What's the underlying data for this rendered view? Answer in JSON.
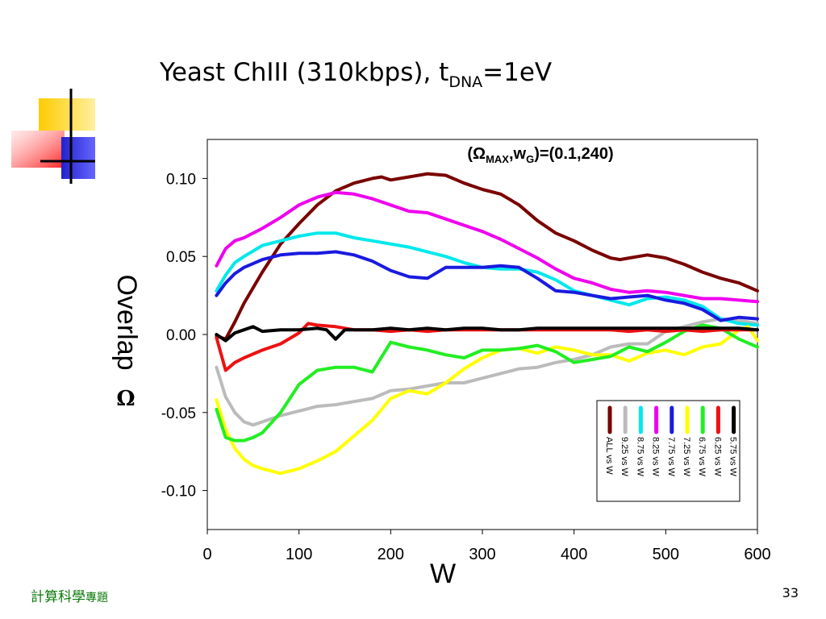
{
  "slide": {
    "title_main": "Yeast ChIII (310kbps), t",
    "title_sub": "DNA",
    "title_tail": "=1eV",
    "footer_main": "計算科學",
    "footer_small": "專題",
    "page_number": "33"
  },
  "chart_data": {
    "type": "line",
    "annotation": {
      "open": "(",
      "symbol": "Ω",
      "sub1": "MAX",
      "comma": ",w",
      "sub2": "G",
      "close": ")=(0.1,240)"
    },
    "xlabel": "W",
    "ylabel": "Overlap",
    "ylabel_symbol": "Ω",
    "xlim": [
      0,
      600
    ],
    "ylim": [
      -0.125,
      0.125
    ],
    "xticks": [
      0,
      100,
      200,
      300,
      400,
      500,
      600
    ],
    "xtick_labels": [
      "0",
      "100",
      "200",
      "300",
      "400",
      "500",
      "600"
    ],
    "yticks": [
      0.1,
      0.05,
      0.0,
      -0.05,
      -0.1
    ],
    "ytick_labels": [
      "0.10",
      "0.05",
      "0.00",
      "-0.05",
      "-0.10"
    ],
    "grid": false,
    "legend_position": "bottom-right",
    "series": [
      {
        "name": "ALL vs W",
        "color": "#7a0000",
        "points": [
          [
            10,
            -0.001
          ],
          [
            20,
            -0.003
          ],
          [
            30,
            0.008
          ],
          [
            40,
            0.02
          ],
          [
            60,
            0.04
          ],
          [
            80,
            0.058
          ],
          [
            100,
            0.071
          ],
          [
            120,
            0.083
          ],
          [
            140,
            0.092
          ],
          [
            160,
            0.097
          ],
          [
            180,
            0.1
          ],
          [
            190,
            0.101
          ],
          [
            200,
            0.099
          ],
          [
            220,
            0.101
          ],
          [
            240,
            0.103
          ],
          [
            260,
            0.102
          ],
          [
            280,
            0.097
          ],
          [
            300,
            0.093
          ],
          [
            320,
            0.09
          ],
          [
            340,
            0.083
          ],
          [
            360,
            0.073
          ],
          [
            380,
            0.065
          ],
          [
            400,
            0.06
          ],
          [
            420,
            0.054
          ],
          [
            440,
            0.049
          ],
          [
            450,
            0.048
          ],
          [
            460,
            0.049
          ],
          [
            480,
            0.051
          ],
          [
            500,
            0.049
          ],
          [
            520,
            0.045
          ],
          [
            540,
            0.04
          ],
          [
            560,
            0.036
          ],
          [
            580,
            0.033
          ],
          [
            600,
            0.028
          ]
        ]
      },
      {
        "name": "9.25 vs W",
        "color": "#bbbbbb",
        "points": [
          [
            10,
            -0.021
          ],
          [
            20,
            -0.04
          ],
          [
            30,
            -0.05
          ],
          [
            40,
            -0.056
          ],
          [
            50,
            -0.058
          ],
          [
            60,
            -0.056
          ],
          [
            80,
            -0.052
          ],
          [
            100,
            -0.049
          ],
          [
            120,
            -0.046
          ],
          [
            140,
            -0.045
          ],
          [
            160,
            -0.043
          ],
          [
            180,
            -0.041
          ],
          [
            200,
            -0.036
          ],
          [
            220,
            -0.035
          ],
          [
            240,
            -0.033
          ],
          [
            260,
            -0.031
          ],
          [
            280,
            -0.031
          ],
          [
            300,
            -0.028
          ],
          [
            320,
            -0.025
          ],
          [
            340,
            -0.022
          ],
          [
            360,
            -0.021
          ],
          [
            380,
            -0.018
          ],
          [
            400,
            -0.016
          ],
          [
            420,
            -0.013
          ],
          [
            440,
            -0.008
          ],
          [
            460,
            -0.006
          ],
          [
            480,
            -0.006
          ],
          [
            500,
            0.002
          ],
          [
            520,
            0.005
          ],
          [
            540,
            0.008
          ],
          [
            560,
            0.01
          ],
          [
            580,
            0.009
          ],
          [
            600,
            0.007
          ]
        ]
      },
      {
        "name": "8.75 vs W",
        "color": "#00e8ec",
        "points": [
          [
            10,
            0.028
          ],
          [
            20,
            0.038
          ],
          [
            30,
            0.046
          ],
          [
            40,
            0.05
          ],
          [
            60,
            0.057
          ],
          [
            80,
            0.06
          ],
          [
            100,
            0.063
          ],
          [
            120,
            0.065
          ],
          [
            140,
            0.065
          ],
          [
            160,
            0.062
          ],
          [
            180,
            0.06
          ],
          [
            200,
            0.058
          ],
          [
            220,
            0.056
          ],
          [
            240,
            0.053
          ],
          [
            260,
            0.05
          ],
          [
            280,
            0.046
          ],
          [
            300,
            0.043
          ],
          [
            320,
            0.042
          ],
          [
            340,
            0.042
          ],
          [
            360,
            0.04
          ],
          [
            380,
            0.035
          ],
          [
            400,
            0.028
          ],
          [
            420,
            0.025
          ],
          [
            440,
            0.022
          ],
          [
            460,
            0.019
          ],
          [
            480,
            0.023
          ],
          [
            500,
            0.024
          ],
          [
            520,
            0.022
          ],
          [
            540,
            0.018
          ],
          [
            560,
            0.01
          ],
          [
            580,
            0.007
          ],
          [
            600,
            0.006
          ]
        ]
      },
      {
        "name": "8.25 vs W",
        "color": "#ee00ee",
        "points": [
          [
            10,
            0.044
          ],
          [
            20,
            0.055
          ],
          [
            30,
            0.06
          ],
          [
            40,
            0.062
          ],
          [
            60,
            0.068
          ],
          [
            80,
            0.075
          ],
          [
            100,
            0.083
          ],
          [
            120,
            0.088
          ],
          [
            140,
            0.091
          ],
          [
            160,
            0.09
          ],
          [
            180,
            0.087
          ],
          [
            200,
            0.083
          ],
          [
            220,
            0.079
          ],
          [
            240,
            0.078
          ],
          [
            260,
            0.074
          ],
          [
            280,
            0.07
          ],
          [
            300,
            0.066
          ],
          [
            320,
            0.061
          ],
          [
            340,
            0.055
          ],
          [
            360,
            0.049
          ],
          [
            380,
            0.042
          ],
          [
            400,
            0.036
          ],
          [
            420,
            0.033
          ],
          [
            440,
            0.029
          ],
          [
            460,
            0.027
          ],
          [
            480,
            0.028
          ],
          [
            500,
            0.027
          ],
          [
            520,
            0.025
          ],
          [
            540,
            0.023
          ],
          [
            560,
            0.023
          ],
          [
            580,
            0.022
          ],
          [
            600,
            0.021
          ]
        ]
      },
      {
        "name": "7.75 vs W",
        "color": "#1a1adf",
        "points": [
          [
            10,
            0.025
          ],
          [
            20,
            0.033
          ],
          [
            30,
            0.039
          ],
          [
            40,
            0.043
          ],
          [
            60,
            0.048
          ],
          [
            80,
            0.051
          ],
          [
            100,
            0.052
          ],
          [
            120,
            0.052
          ],
          [
            140,
            0.053
          ],
          [
            160,
            0.051
          ],
          [
            180,
            0.047
          ],
          [
            200,
            0.041
          ],
          [
            220,
            0.037
          ],
          [
            240,
            0.036
          ],
          [
            260,
            0.043
          ],
          [
            280,
            0.043
          ],
          [
            300,
            0.043
          ],
          [
            320,
            0.044
          ],
          [
            340,
            0.043
          ],
          [
            360,
            0.036
          ],
          [
            380,
            0.028
          ],
          [
            400,
            0.027
          ],
          [
            420,
            0.025
          ],
          [
            440,
            0.023
          ],
          [
            460,
            0.024
          ],
          [
            480,
            0.025
          ],
          [
            500,
            0.022
          ],
          [
            520,
            0.02
          ],
          [
            540,
            0.016
          ],
          [
            560,
            0.009
          ],
          [
            580,
            0.011
          ],
          [
            600,
            0.01
          ]
        ]
      },
      {
        "name": "7.25 vs W",
        "color": "#ffff00",
        "points": [
          [
            10,
            -0.042
          ],
          [
            20,
            -0.061
          ],
          [
            30,
            -0.073
          ],
          [
            40,
            -0.08
          ],
          [
            50,
            -0.084
          ],
          [
            60,
            -0.086
          ],
          [
            80,
            -0.089
          ],
          [
            100,
            -0.086
          ],
          [
            120,
            -0.081
          ],
          [
            140,
            -0.075
          ],
          [
            160,
            -0.065
          ],
          [
            180,
            -0.055
          ],
          [
            200,
            -0.041
          ],
          [
            220,
            -0.036
          ],
          [
            240,
            -0.038
          ],
          [
            260,
            -0.031
          ],
          [
            280,
            -0.022
          ],
          [
            300,
            -0.015
          ],
          [
            320,
            -0.01
          ],
          [
            340,
            -0.009
          ],
          [
            360,
            -0.012
          ],
          [
            380,
            -0.008
          ],
          [
            400,
            -0.01
          ],
          [
            420,
            -0.013
          ],
          [
            440,
            -0.013
          ],
          [
            460,
            -0.017
          ],
          [
            480,
            -0.012
          ],
          [
            500,
            -0.01
          ],
          [
            520,
            -0.013
          ],
          [
            540,
            -0.008
          ],
          [
            560,
            -0.006
          ],
          [
            580,
            0.003
          ],
          [
            590,
            0.005
          ],
          [
            600,
            -0.004
          ]
        ]
      },
      {
        "name": "6.75 vs W",
        "color": "#22ee22",
        "points": [
          [
            10,
            -0.048
          ],
          [
            20,
            -0.066
          ],
          [
            30,
            -0.068
          ],
          [
            40,
            -0.068
          ],
          [
            50,
            -0.066
          ],
          [
            60,
            -0.063
          ],
          [
            80,
            -0.05
          ],
          [
            100,
            -0.032
          ],
          [
            120,
            -0.023
          ],
          [
            140,
            -0.021
          ],
          [
            160,
            -0.021
          ],
          [
            180,
            -0.024
          ],
          [
            200,
            -0.005
          ],
          [
            220,
            -0.008
          ],
          [
            240,
            -0.01
          ],
          [
            260,
            -0.013
          ],
          [
            280,
            -0.015
          ],
          [
            300,
            -0.01
          ],
          [
            320,
            -0.01
          ],
          [
            340,
            -0.009
          ],
          [
            360,
            -0.007
          ],
          [
            380,
            -0.011
          ],
          [
            400,
            -0.018
          ],
          [
            420,
            -0.016
          ],
          [
            440,
            -0.014
          ],
          [
            460,
            -0.008
          ],
          [
            480,
            -0.011
          ],
          [
            500,
            -0.005
          ],
          [
            520,
            0.002
          ],
          [
            540,
            0.006
          ],
          [
            560,
            0.004
          ],
          [
            580,
            -0.003
          ],
          [
            600,
            -0.008
          ]
        ]
      },
      {
        "name": "6.25 vs W",
        "color": "#ee1111",
        "points": [
          [
            10,
            -0.002
          ],
          [
            20,
            -0.023
          ],
          [
            30,
            -0.018
          ],
          [
            40,
            -0.015
          ],
          [
            60,
            -0.01
          ],
          [
            80,
            -0.006
          ],
          [
            100,
            0.001
          ],
          [
            110,
            0.007
          ],
          [
            120,
            0.006
          ],
          [
            140,
            0.005
          ],
          [
            160,
            0.003
          ],
          [
            180,
            0.003
          ],
          [
            200,
            0.002
          ],
          [
            220,
            0.003
          ],
          [
            240,
            0.002
          ],
          [
            260,
            0.003
          ],
          [
            280,
            0.003
          ],
          [
            300,
            0.003
          ],
          [
            320,
            0.003
          ],
          [
            340,
            0.003
          ],
          [
            360,
            0.003
          ],
          [
            380,
            0.003
          ],
          [
            400,
            0.003
          ],
          [
            420,
            0.003
          ],
          [
            440,
            0.003
          ],
          [
            460,
            0.002
          ],
          [
            480,
            0.003
          ],
          [
            500,
            0.002
          ],
          [
            520,
            0.003
          ],
          [
            540,
            0.002
          ],
          [
            560,
            0.003
          ],
          [
            580,
            0.003
          ],
          [
            600,
            0.003
          ]
        ]
      },
      {
        "name": "5.75 vs W",
        "color": "#000000",
        "points": [
          [
            10,
            0.0
          ],
          [
            20,
            -0.004
          ],
          [
            30,
            0.001
          ],
          [
            40,
            0.003
          ],
          [
            50,
            0.005
          ],
          [
            60,
            0.002
          ],
          [
            80,
            0.003
          ],
          [
            100,
            0.003
          ],
          [
            120,
            0.004
          ],
          [
            130,
            0.003
          ],
          [
            140,
            -0.003
          ],
          [
            150,
            0.003
          ],
          [
            160,
            0.003
          ],
          [
            180,
            0.003
          ],
          [
            200,
            0.004
          ],
          [
            220,
            0.003
          ],
          [
            240,
            0.004
          ],
          [
            260,
            0.003
          ],
          [
            280,
            0.004
          ],
          [
            300,
            0.004
          ],
          [
            320,
            0.003
          ],
          [
            340,
            0.003
          ],
          [
            360,
            0.004
          ],
          [
            380,
            0.004
          ],
          [
            400,
            0.004
          ],
          [
            420,
            0.004
          ],
          [
            440,
            0.004
          ],
          [
            460,
            0.004
          ],
          [
            480,
            0.004
          ],
          [
            500,
            0.004
          ],
          [
            520,
            0.004
          ],
          [
            540,
            0.004
          ],
          [
            560,
            0.004
          ],
          [
            580,
            0.004
          ],
          [
            600,
            0.003
          ]
        ]
      }
    ]
  }
}
